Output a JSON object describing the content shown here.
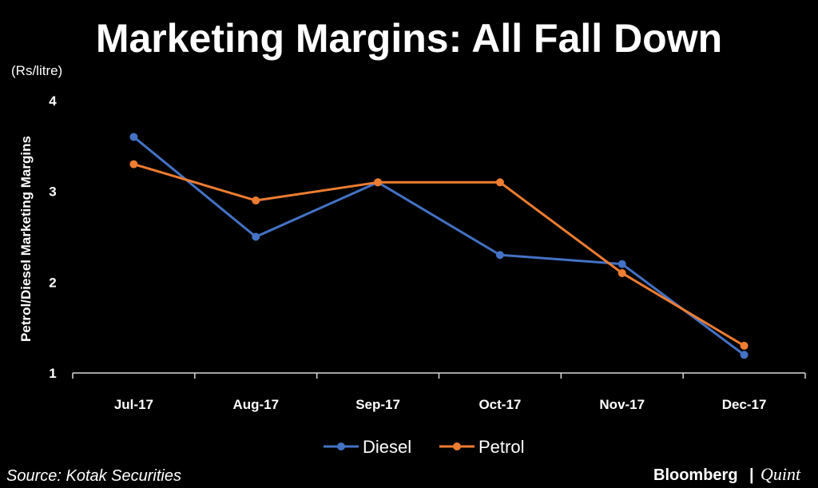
{
  "chart_data": {
    "type": "line",
    "title": "Marketing Margins: All Fall Down",
    "unit": "(Rs/litre)",
    "ylabel": "Petrol/Diesel Marketing Margins",
    "xlabel": "",
    "categories": [
      "Jul-17",
      "Aug-17",
      "Sep-17",
      "Oct-17",
      "Nov-17",
      "Dec-17"
    ],
    "ylim": [
      1,
      4
    ],
    "yticks": [
      "1",
      "2",
      "3",
      "4"
    ],
    "grid": false,
    "legend_position": "bottom",
    "series": [
      {
        "name": "Diesel",
        "color": "#4472C4",
        "values": [
          3.6,
          2.5,
          3.1,
          2.3,
          2.2,
          1.2
        ]
      },
      {
        "name": "Petrol",
        "color": "#ED7D31",
        "values": [
          3.3,
          2.9,
          3.1,
          3.1,
          2.1,
          1.3
        ]
      }
    ]
  },
  "footer": {
    "source": "Source: Kotak Securities",
    "brand_primary": "Bloomberg",
    "brand_divider": "|",
    "brand_secondary": "Quint"
  }
}
